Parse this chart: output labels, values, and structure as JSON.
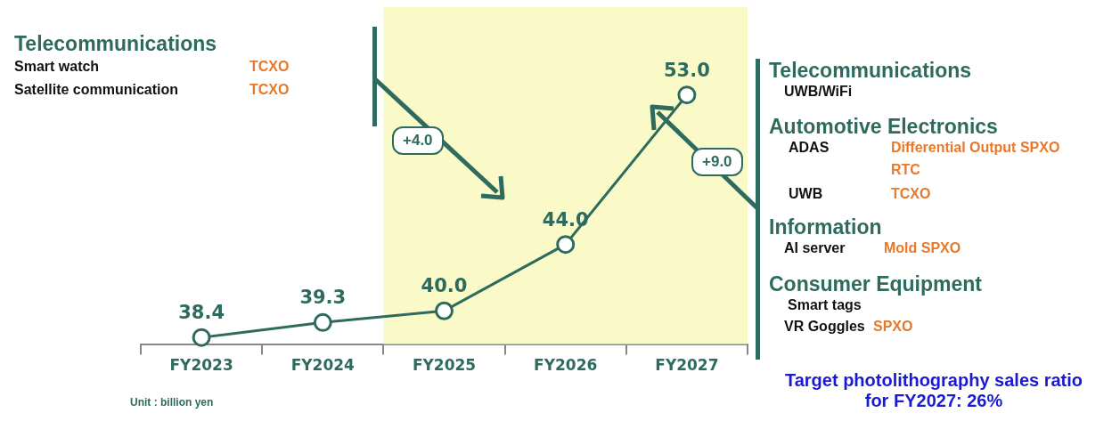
{
  "chart_data": {
    "type": "line",
    "categories": [
      "FY2023",
      "FY2024",
      "FY2025",
      "FY2026",
      "FY2027"
    ],
    "series": [
      {
        "color": "#2e6b5e",
        "values": [
          38.4,
          39.3,
          40.0,
          44.0,
          53.0
        ],
        "value_labels": [
          "38.4",
          "39.3",
          "40.0",
          "44.0",
          "53.0"
        ]
      }
    ],
    "marker": "circle",
    "grid": false,
    "legend": false,
    "tick_labels": "x",
    "bands": [
      {
        "axis": "x",
        "from": "FY2025",
        "to": "FY2027",
        "color": "#fafac8"
      }
    ],
    "annotations": [
      "Telecommunications",
      "Smart watch",
      "TCXO",
      "Satellite communication",
      "TCXO",
      "+4.0",
      "+9.0",
      "Telecommunications",
      "UWB/WiFi",
      "Automotive Electronics",
      "ADAS",
      "Differential Output SPXO",
      "RTC",
      "UWB",
      "TCXO",
      "Information",
      "AI server",
      "Mold SPXO",
      "Consumer Equipment",
      "Smart tags",
      "VR Goggles",
      "SPXO",
      "Target photolithography sales ratio for FY2027: 26%",
      "Unit : billion yen"
    ]
  }
}
